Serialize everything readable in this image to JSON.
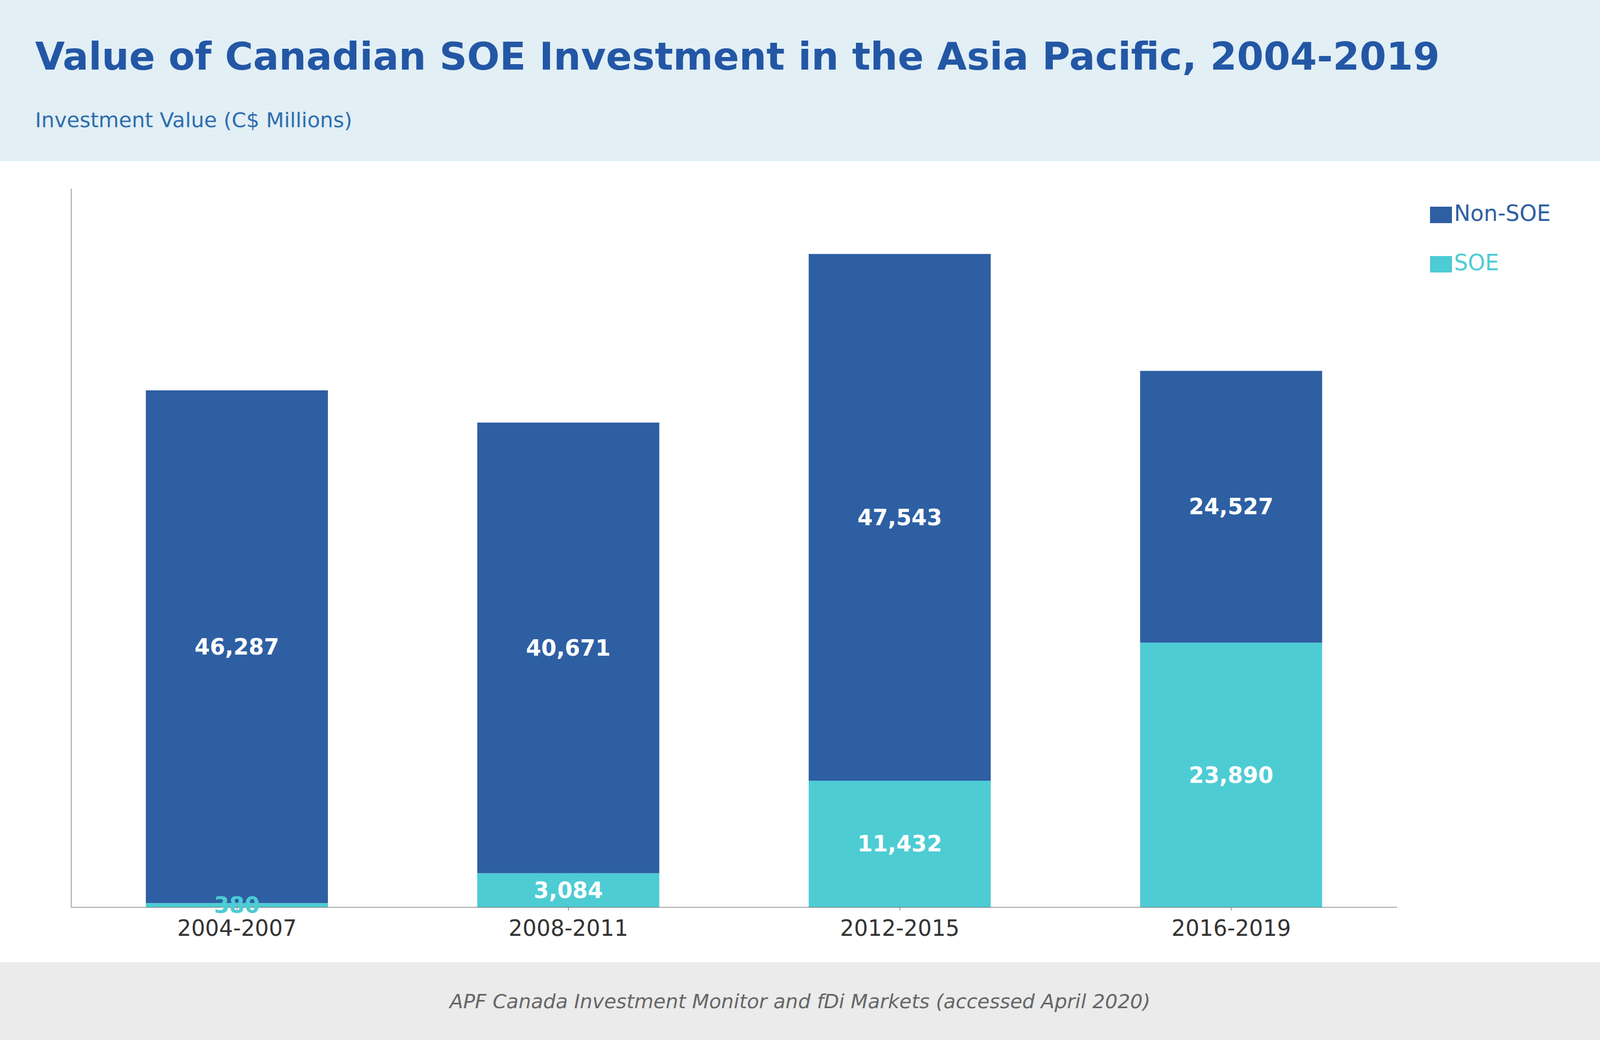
{
  "chart_data": {
    "type": "bar",
    "title": "Value of Canadian SOE Investment in the Asia Pacific, 2004-2019",
    "ylabel": "Investment Value (C$ Millions)",
    "source": "APF Canada Investment Monitor and fDi Markets (accessed April 2020)",
    "categories": [
      "2004-2007",
      "2008-2011",
      "2012-2015",
      "2016-2019"
    ],
    "series": [
      {
        "name": "SOE",
        "color": "#4DCCD4",
        "values": [
          380,
          3084,
          11432,
          23890
        ],
        "value_labels": [
          "380",
          "3,084",
          "11,432",
          "23,890"
        ]
      },
      {
        "name": "Non-SOE",
        "color": "#2E5FA3",
        "values": [
          46287,
          40671,
          47543,
          24527
        ],
        "value_labels": [
          "46,287",
          "40,671",
          "47,543",
          "24,527"
        ]
      }
    ],
    "stacked": true,
    "data_labels": true,
    "ylim": [
      0,
      64872.5
    ],
    "tick_labels": "x",
    "grid": false,
    "legend": "upper right"
  }
}
